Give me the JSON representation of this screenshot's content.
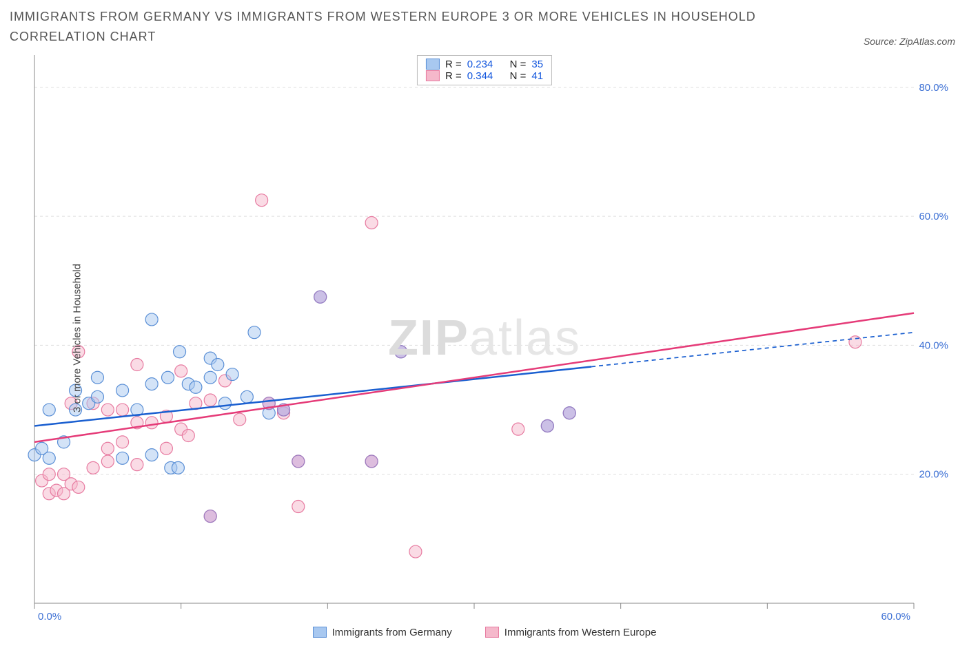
{
  "chart": {
    "type": "scatter",
    "title": "IMMIGRANTS FROM GERMANY VS IMMIGRANTS FROM WESTERN EUROPE 3 OR MORE VEHICLES IN HOUSEHOLD CORRELATION CHART",
    "source": "Source: ZipAtlas.com",
    "watermark_a": "ZIP",
    "watermark_b": "atlas",
    "y_axis_label": "3 or more Vehicles in Household",
    "background_color": "#ffffff",
    "grid_color": "#dddddd",
    "axis_color": "#888888",
    "tick_label_color": "#3b6fd4",
    "x": {
      "min": 0,
      "max": 60,
      "ticks": [
        0,
        10,
        20,
        30,
        40,
        50,
        60
      ],
      "labels": [
        "0.0%",
        "",
        "",
        "",
        "",
        "",
        "60.0%"
      ]
    },
    "y": {
      "min": 0,
      "max": 85,
      "ticks": [
        20,
        40,
        60,
        80
      ],
      "labels": [
        "20.0%",
        "40.0%",
        "60.0%",
        "80.0%"
      ]
    },
    "series": [
      {
        "name": "Immigrants from Germany",
        "fill": "#a8c8f0",
        "stroke": "#5a8fd6",
        "fill_opacity": 0.5,
        "marker_radius": 9,
        "stats": {
          "R": "0.234",
          "N": "35"
        },
        "trend": {
          "color": "#1a5fd0",
          "width": 2.5,
          "y_at_xmin": 27.5,
          "y_at_xmax": 42,
          "solid_until_x": 38
        },
        "points": [
          [
            0,
            23
          ],
          [
            0.5,
            24
          ],
          [
            1,
            22.5
          ],
          [
            1,
            30
          ],
          [
            2,
            25
          ],
          [
            2.8,
            30
          ],
          [
            2.8,
            33
          ],
          [
            3.7,
            31
          ],
          [
            4.3,
            35
          ],
          [
            4.3,
            32
          ],
          [
            6,
            22.5
          ],
          [
            6,
            33
          ],
          [
            7,
            30
          ],
          [
            8,
            23
          ],
          [
            8,
            34
          ],
          [
            8,
            44
          ],
          [
            9.1,
            35
          ],
          [
            9.9,
            39
          ],
          [
            9.3,
            21
          ],
          [
            9.8,
            21
          ],
          [
            10.5,
            34
          ],
          [
            11,
            33.5
          ],
          [
            12,
            38
          ],
          [
            12,
            35
          ],
          [
            12.5,
            37
          ],
          [
            13,
            31
          ],
          [
            13.5,
            35.5
          ],
          [
            14.5,
            32
          ],
          [
            15,
            42
          ],
          [
            16,
            29.5
          ],
          [
            17,
            30
          ],
          [
            19.5,
            47.5
          ],
          [
            25,
            39
          ],
          [
            35,
            27.5
          ],
          [
            36.5,
            29.5
          ]
        ]
      },
      {
        "name": "Immigrants from Western Europe",
        "fill": "#f5b8cb",
        "stroke": "#e77aa0",
        "fill_opacity": 0.5,
        "marker_radius": 9,
        "stats": {
          "R": "0.344",
          "N": "41"
        },
        "trend": {
          "color": "#e53b78",
          "width": 2.5,
          "y_at_xmin": 25,
          "y_at_xmax": 45,
          "solid_until_x": 60
        },
        "points": [
          [
            0.5,
            19
          ],
          [
            1,
            20
          ],
          [
            1,
            17
          ],
          [
            1.5,
            17.5
          ],
          [
            2,
            20
          ],
          [
            2,
            17
          ],
          [
            2.5,
            18.5
          ],
          [
            2.5,
            31
          ],
          [
            3,
            39
          ],
          [
            3,
            18
          ],
          [
            4,
            21
          ],
          [
            4,
            31
          ],
          [
            5,
            24
          ],
          [
            5,
            22
          ],
          [
            5,
            30
          ],
          [
            6,
            25
          ],
          [
            6,
            30
          ],
          [
            7,
            21.5
          ],
          [
            7,
            37
          ],
          [
            7,
            28
          ],
          [
            8,
            28
          ],
          [
            9,
            29
          ],
          [
            9,
            24
          ],
          [
            10,
            36
          ],
          [
            10,
            27
          ],
          [
            10.5,
            26
          ],
          [
            11,
            31
          ],
          [
            12,
            13.5
          ],
          [
            12,
            31.5
          ],
          [
            13,
            34.5
          ],
          [
            14,
            28.5
          ],
          [
            15.5,
            62.5
          ],
          [
            16,
            31
          ],
          [
            17,
            29.5
          ],
          [
            18,
            15
          ],
          [
            18,
            22
          ],
          [
            23,
            22
          ],
          [
            23,
            59
          ],
          [
            26,
            8
          ],
          [
            33,
            27
          ],
          [
            56,
            40.5
          ]
        ]
      }
    ],
    "overlap_points": {
      "fill": "#c4a4d8",
      "stroke": "#9a7bc0",
      "fill_opacity": 0.55,
      "marker_radius": 9,
      "points": [
        [
          12,
          13.5
        ],
        [
          16,
          31
        ],
        [
          17,
          30
        ],
        [
          18,
          22
        ],
        [
          19.5,
          47.5
        ],
        [
          23,
          22
        ],
        [
          25,
          39
        ],
        [
          35,
          27.5
        ],
        [
          36.5,
          29.5
        ]
      ]
    }
  },
  "legend": {
    "series1_label": "Immigrants from Germany",
    "series2_label": "Immigrants from Western Europe"
  },
  "stats_labels": {
    "R": "R  =",
    "N": "N  ="
  }
}
